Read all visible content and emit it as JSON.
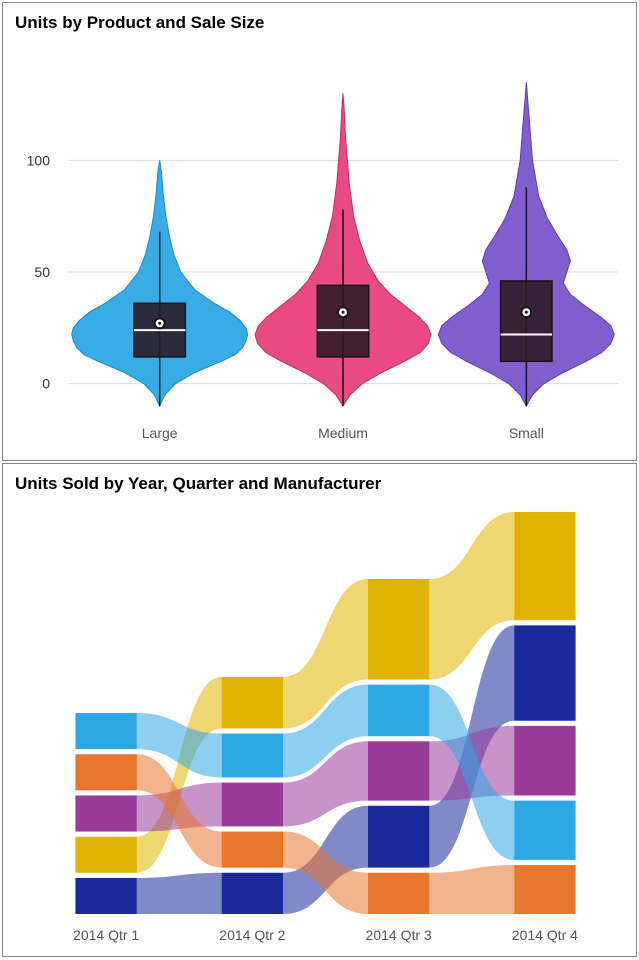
{
  "violin": {
    "title": "Units by Product and Sale Size",
    "type": "violin-boxplot",
    "background_color": "#ffffff",
    "grid_color": "#dddddd",
    "ylim": [
      -10,
      140
    ],
    "yticks": [
      0,
      50,
      100
    ],
    "categories": [
      "Large",
      "Medium",
      "Small"
    ],
    "series": [
      {
        "label": "Large",
        "fill": "#2ea8e5",
        "stroke": "#1a8acb",
        "min": -10,
        "q1": 12,
        "median": 24,
        "mean": 27,
        "q3": 36,
        "max": 68,
        "violin_max": 100,
        "profile": [
          [
            -10,
            0
          ],
          [
            -5,
            6
          ],
          [
            0,
            18
          ],
          [
            5,
            40
          ],
          [
            10,
            70
          ],
          [
            13,
            86
          ],
          [
            16,
            94
          ],
          [
            19,
            98
          ],
          [
            22,
            100
          ],
          [
            25,
            98
          ],
          [
            28,
            92
          ],
          [
            32,
            80
          ],
          [
            36,
            62
          ],
          [
            42,
            40
          ],
          [
            50,
            24
          ],
          [
            58,
            16
          ],
          [
            66,
            11
          ],
          [
            75,
            7
          ],
          [
            85,
            4
          ],
          [
            95,
            2
          ],
          [
            100,
            0
          ]
        ]
      },
      {
        "label": "Medium",
        "fill": "#e8407a",
        "stroke": "#c22f63",
        "min": -10,
        "q1": 12,
        "median": 24,
        "mean": 32,
        "q3": 44,
        "max": 78,
        "violin_max": 130,
        "profile": [
          [
            -10,
            0
          ],
          [
            -5,
            8
          ],
          [
            0,
            22
          ],
          [
            5,
            44
          ],
          [
            10,
            70
          ],
          [
            14,
            88
          ],
          [
            18,
            97
          ],
          [
            22,
            100
          ],
          [
            26,
            96
          ],
          [
            30,
            86
          ],
          [
            35,
            70
          ],
          [
            40,
            54
          ],
          [
            46,
            40
          ],
          [
            54,
            28
          ],
          [
            64,
            19
          ],
          [
            75,
            12
          ],
          [
            90,
            7
          ],
          [
            110,
            3
          ],
          [
            125,
            1
          ],
          [
            130,
            0
          ]
        ]
      },
      {
        "label": "Small",
        "fill": "#7a55cc",
        "stroke": "#5f3db0",
        "min": -10,
        "q1": 10,
        "median": 22,
        "mean": 32,
        "q3": 46,
        "max": 88,
        "violin_max": 135,
        "profile": [
          [
            -10,
            0
          ],
          [
            -5,
            7
          ],
          [
            0,
            20
          ],
          [
            5,
            42
          ],
          [
            10,
            68
          ],
          [
            14,
            86
          ],
          [
            18,
            96
          ],
          [
            22,
            100
          ],
          [
            26,
            96
          ],
          [
            30,
            84
          ],
          [
            35,
            66
          ],
          [
            40,
            50
          ],
          [
            45,
            42
          ],
          [
            50,
            46
          ],
          [
            55,
            50
          ],
          [
            60,
            46
          ],
          [
            66,
            36
          ],
          [
            74,
            24
          ],
          [
            84,
            14
          ],
          [
            100,
            7
          ],
          [
            120,
            3
          ],
          [
            135,
            0
          ]
        ]
      }
    ],
    "box_color": "#2b1a24",
    "label_fontsize": 14,
    "title_fontsize": 17
  },
  "ribbon": {
    "title": "Units Sold by Year, Quarter and Manufacturer",
    "type": "ribbon",
    "background_color": "#ffffff",
    "categories": [
      "2014 Qtr 1",
      "2014 Qtr 2",
      "2014 Qtr 3",
      "2014 Qtr 4"
    ],
    "colors": {
      "cyan": "#2ea8e5",
      "orange": "#e8762d",
      "purple": "#9a3b9a",
      "gold": "#e0b400",
      "navy": "#1a2a9a"
    },
    "ribbon_opacity": 0.55,
    "series": [
      {
        "id": "gold",
        "color": "#e0b400",
        "stack_pos": [
          3,
          0,
          0,
          0
        ],
        "heights": [
          28,
          40,
          78,
          84
        ]
      },
      {
        "id": "navy",
        "color": "#1a2a9a",
        "stack_pos": [
          4,
          4,
          3,
          1
        ],
        "heights": [
          28,
          32,
          48,
          74
        ]
      },
      {
        "id": "purple",
        "color": "#9a3b9a",
        "stack_pos": [
          2,
          2,
          2,
          2
        ],
        "heights": [
          28,
          34,
          46,
          54
        ]
      },
      {
        "id": "cyan",
        "color": "#2ea8e5",
        "stack_pos": [
          0,
          1,
          1,
          3
        ],
        "heights": [
          28,
          34,
          40,
          46
        ]
      },
      {
        "id": "orange",
        "color": "#e8762d",
        "stack_pos": [
          1,
          3,
          4,
          4
        ],
        "heights": [
          28,
          28,
          32,
          38
        ]
      }
    ],
    "label_fontsize": 14,
    "title_fontsize": 17,
    "gap": 4
  }
}
